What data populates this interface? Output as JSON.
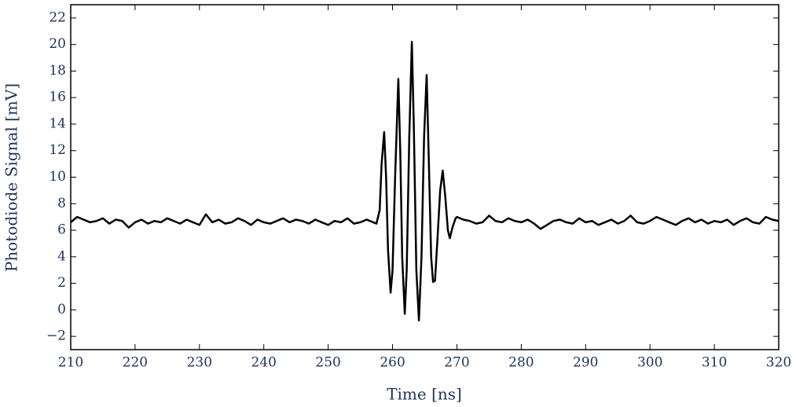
{
  "chart_data": {
    "type": "line",
    "xlabel": "Time [ns]",
    "ylabel": "Photodiode Signal [mV]",
    "xlim": [
      210,
      320
    ],
    "xticks": [
      210,
      220,
      230,
      240,
      250,
      260,
      270,
      280,
      290,
      300,
      310,
      320
    ],
    "ylim": [
      -3,
      23
    ],
    "yticks": [
      {
        "value": -2,
        "label": "−2"
      },
      0,
      2,
      4,
      6,
      8,
      10,
      12,
      14,
      16,
      18,
      20,
      22
    ],
    "series": [
      {
        "color": "#000000",
        "x": [
          210,
          211,
          212,
          213,
          214,
          215,
          216,
          217,
          218,
          219,
          220,
          221,
          222,
          223,
          224,
          225,
          226,
          227,
          228,
          229,
          230,
          231,
          232,
          233,
          234,
          235,
          236,
          237,
          238,
          239,
          240,
          241,
          242,
          243,
          244,
          245,
          246,
          247,
          248,
          249,
          250,
          251,
          252,
          253,
          254,
          255,
          256,
          257,
          257.5,
          258,
          258.3,
          258.7,
          259,
          259.3,
          259.7,
          260,
          260.4,
          260.9,
          261.2,
          261.5,
          261.9,
          262.2,
          262.6,
          263.0,
          263.3,
          263.7,
          264.1,
          264.5,
          264.9,
          265.3,
          265.6,
          266.0,
          266.3,
          266.6,
          267.0,
          267.4,
          267.8,
          268.2,
          268.6,
          268.9,
          269.3,
          269.8,
          270,
          271,
          272,
          273,
          274,
          275,
          276,
          277,
          278,
          279,
          280,
          281,
          282,
          283,
          284,
          285,
          286,
          287,
          288,
          289,
          290,
          291,
          292,
          293,
          294,
          295,
          296,
          297,
          298,
          299,
          300,
          301,
          302,
          303,
          304,
          305,
          306,
          307,
          308,
          309,
          310,
          311,
          312,
          313,
          314,
          315,
          316,
          317,
          318,
          319,
          320
        ],
        "values": [
          6.6,
          7.0,
          6.8,
          6.6,
          6.7,
          6.9,
          6.5,
          6.8,
          6.7,
          6.2,
          6.6,
          6.8,
          6.5,
          6.7,
          6.6,
          6.9,
          6.7,
          6.5,
          6.8,
          6.6,
          6.4,
          7.2,
          6.6,
          6.8,
          6.5,
          6.6,
          6.9,
          6.7,
          6.4,
          6.8,
          6.6,
          6.5,
          6.7,
          6.9,
          6.6,
          6.8,
          6.7,
          6.5,
          6.8,
          6.6,
          6.4,
          6.7,
          6.6,
          6.9,
          6.5,
          6.6,
          6.8,
          6.6,
          6.5,
          7.5,
          11,
          13.4,
          10,
          4.5,
          1.3,
          3,
          10,
          17.4,
          12,
          4,
          -0.3,
          3,
          13,
          20.2,
          14,
          3,
          -0.8,
          4,
          13,
          17.7,
          12,
          4,
          2.1,
          2.2,
          5.5,
          9,
          10.5,
          8.5,
          6.0,
          5.4,
          6.2,
          6.9,
          7.0,
          6.8,
          6.7,
          6.5,
          6.6,
          7.1,
          6.7,
          6.6,
          6.9,
          6.7,
          6.6,
          6.8,
          6.5,
          6.1,
          6.4,
          6.7,
          6.8,
          6.6,
          6.5,
          6.9,
          6.6,
          6.7,
          6.4,
          6.6,
          6.8,
          6.5,
          6.7,
          7.1,
          6.6,
          6.5,
          6.7,
          7.0,
          6.8,
          6.6,
          6.4,
          6.7,
          6.9,
          6.6,
          6.8,
          6.5,
          6.7,
          6.6,
          6.8,
          6.4,
          6.7,
          6.9,
          6.6,
          6.5,
          7.0,
          6.8,
          6.7
        ]
      }
    ]
  }
}
